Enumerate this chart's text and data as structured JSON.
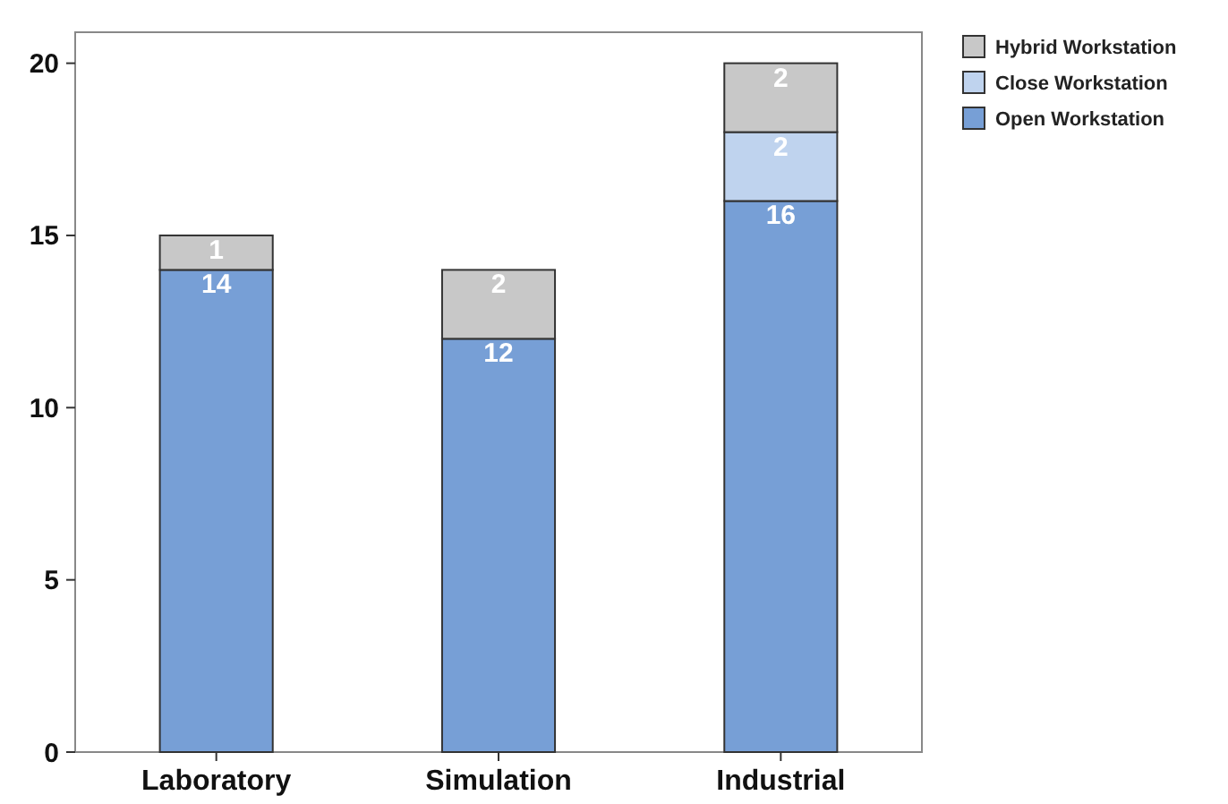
{
  "chart_data": {
    "type": "bar",
    "stacked": true,
    "categories": [
      "Laboratory",
      "Simulation",
      "Industrial"
    ],
    "series": [
      {
        "name": "Open Workstation",
        "color": "#779fd6",
        "values": [
          14,
          12,
          16
        ]
      },
      {
        "name": "Close Workstation",
        "color": "#bfd3ee",
        "values": [
          null,
          null,
          2
        ]
      },
      {
        "name": "Hybrid Workstation",
        "color": "#c8c8c8",
        "values": [
          1,
          2,
          2
        ]
      }
    ],
    "ylim": [
      0,
      20.9
    ],
    "yticks": [
      0,
      5,
      10,
      15,
      20
    ],
    "data_labels": true,
    "legend": "top right",
    "grid": false
  }
}
